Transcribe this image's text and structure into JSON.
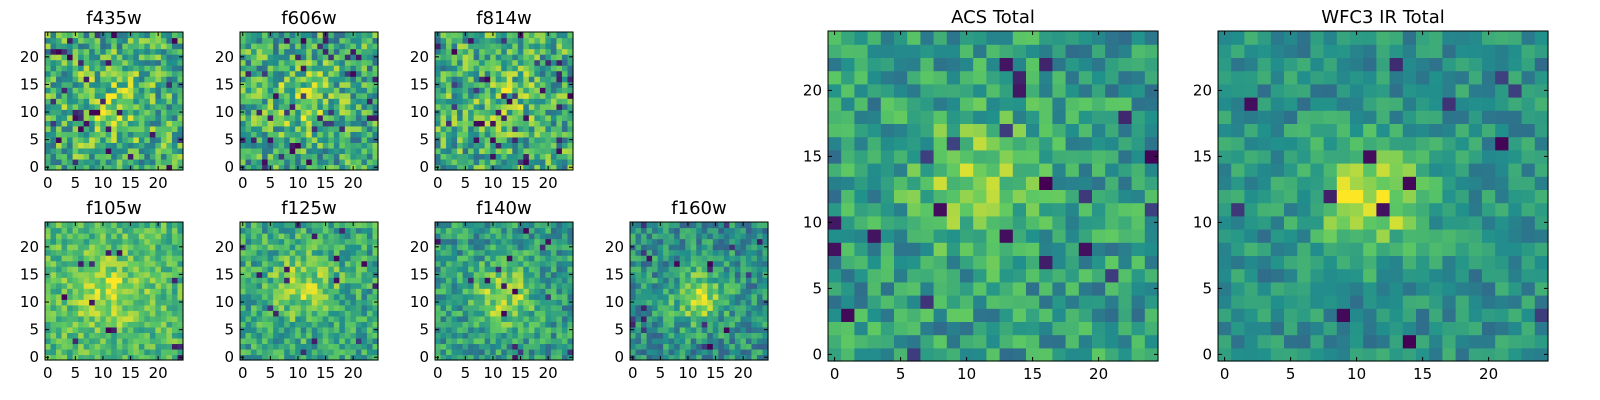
{
  "chart_data": [
    {
      "type": "heatmap",
      "title": "f435w",
      "colormap": "viridis",
      "grid_size": [
        25,
        25
      ],
      "xlim": [
        0,
        24
      ],
      "ylim": [
        0,
        24
      ],
      "x_ticks": [
        0,
        5,
        10,
        15,
        20
      ],
      "y_ticks": [
        0,
        5,
        10,
        15,
        20
      ],
      "grid": false,
      "peak_center": [
        11,
        11
      ],
      "peak_spread": 5.0,
      "peak_strength": 0.15,
      "noise_level": 0.55,
      "base_level": 0.62,
      "dark_pixel_fraction": 0.05,
      "seed": 11
    },
    {
      "type": "heatmap",
      "title": "f606w",
      "colormap": "viridis",
      "grid_size": [
        25,
        25
      ],
      "xlim": [
        0,
        24
      ],
      "ylim": [
        0,
        24
      ],
      "x_ticks": [
        0,
        5,
        10,
        15,
        20
      ],
      "y_ticks": [
        0,
        5,
        10,
        15,
        20
      ],
      "grid": false,
      "peak_center": [
        11,
        12
      ],
      "peak_spread": 4.5,
      "peak_strength": 0.18,
      "noise_level": 0.55,
      "base_level": 0.6,
      "dark_pixel_fraction": 0.06,
      "seed": 23
    },
    {
      "type": "heatmap",
      "title": "f814w",
      "colormap": "viridis",
      "grid_size": [
        25,
        25
      ],
      "xlim": [
        0,
        24
      ],
      "ylim": [
        0,
        24
      ],
      "x_ticks": [
        0,
        5,
        10,
        15,
        20
      ],
      "y_ticks": [
        0,
        5,
        10,
        15,
        20
      ],
      "grid": false,
      "peak_center": [
        12,
        12
      ],
      "peak_spread": 4.5,
      "peak_strength": 0.12,
      "noise_level": 0.55,
      "base_level": 0.62,
      "dark_pixel_fraction": 0.06,
      "seed": 37
    },
    {
      "type": "heatmap",
      "title": "f105w",
      "colormap": "viridis",
      "grid_size": [
        25,
        25
      ],
      "xlim": [
        0,
        24
      ],
      "ylim": [
        0,
        24
      ],
      "x_ticks": [
        0,
        5,
        10,
        15,
        20
      ],
      "y_ticks": [
        0,
        5,
        10,
        15,
        20
      ],
      "grid": false,
      "peak_center": [
        11,
        12
      ],
      "peak_spread": 4.5,
      "peak_strength": 0.2,
      "noise_level": 0.35,
      "base_level": 0.68,
      "dark_pixel_fraction": 0.025,
      "seed": 41
    },
    {
      "type": "heatmap",
      "title": "f125w",
      "colormap": "viridis",
      "grid_size": [
        25,
        25
      ],
      "xlim": [
        0,
        24
      ],
      "ylim": [
        0,
        24
      ],
      "x_ticks": [
        0,
        5,
        10,
        15,
        20
      ],
      "y_ticks": [
        0,
        5,
        10,
        15,
        20
      ],
      "grid": false,
      "peak_center": [
        11,
        13
      ],
      "peak_spread": 4.0,
      "peak_strength": 0.25,
      "noise_level": 0.4,
      "base_level": 0.6,
      "dark_pixel_fraction": 0.025,
      "seed": 53
    },
    {
      "type": "heatmap",
      "title": "f140w",
      "colormap": "viridis",
      "grid_size": [
        25,
        25
      ],
      "xlim": [
        0,
        24
      ],
      "ylim": [
        0,
        24
      ],
      "x_ticks": [
        0,
        5,
        10,
        15,
        20
      ],
      "y_ticks": [
        0,
        5,
        10,
        15,
        20
      ],
      "grid": false,
      "peak_center": [
        12,
        11
      ],
      "peak_spread": 4.0,
      "peak_strength": 0.3,
      "noise_level": 0.4,
      "base_level": 0.55,
      "dark_pixel_fraction": 0.03,
      "seed": 67
    },
    {
      "type": "heatmap",
      "title": "f160w",
      "colormap": "viridis",
      "grid_size": [
        25,
        25
      ],
      "xlim": [
        0,
        24
      ],
      "ylim": [
        0,
        24
      ],
      "x_ticks": [
        0,
        5,
        10,
        15,
        20
      ],
      "y_ticks": [
        0,
        5,
        10,
        15,
        20
      ],
      "grid": false,
      "peak_center": [
        12,
        11
      ],
      "peak_spread": 3.5,
      "peak_strength": 0.35,
      "noise_level": 0.4,
      "base_level": 0.5,
      "dark_pixel_fraction": 0.04,
      "seed": 79
    },
    {
      "type": "heatmap",
      "title": "ACS Total",
      "colormap": "viridis",
      "grid_size": [
        25,
        25
      ],
      "xlim": [
        0,
        24
      ],
      "ylim": [
        0,
        24
      ],
      "x_ticks": [
        0,
        5,
        10,
        15,
        20
      ],
      "y_ticks": [
        0,
        5,
        10,
        15,
        20
      ],
      "grid": false,
      "peak_center": [
        11,
        13
      ],
      "peak_spread": 3.5,
      "peak_strength": 0.3,
      "noise_level": 0.4,
      "base_level": 0.55,
      "dark_pixel_fraction": 0.04,
      "seed": 97
    },
    {
      "type": "heatmap",
      "title": "WFC3 IR Total",
      "colormap": "viridis",
      "grid_size": [
        25,
        25
      ],
      "xlim": [
        0,
        24
      ],
      "ylim": [
        0,
        24
      ],
      "x_ticks": [
        0,
        5,
        10,
        15,
        20
      ],
      "y_ticks": [
        0,
        5,
        10,
        15,
        20
      ],
      "grid": false,
      "peak_center": [
        11,
        12
      ],
      "peak_spread": 3.0,
      "peak_strength": 0.45,
      "noise_level": 0.3,
      "base_level": 0.5,
      "dark_pixel_fraction": 0.025,
      "seed": 113
    }
  ],
  "colormap_stops": [
    "#440154",
    "#3b528b",
    "#21918c",
    "#5ec962",
    "#fde725"
  ]
}
